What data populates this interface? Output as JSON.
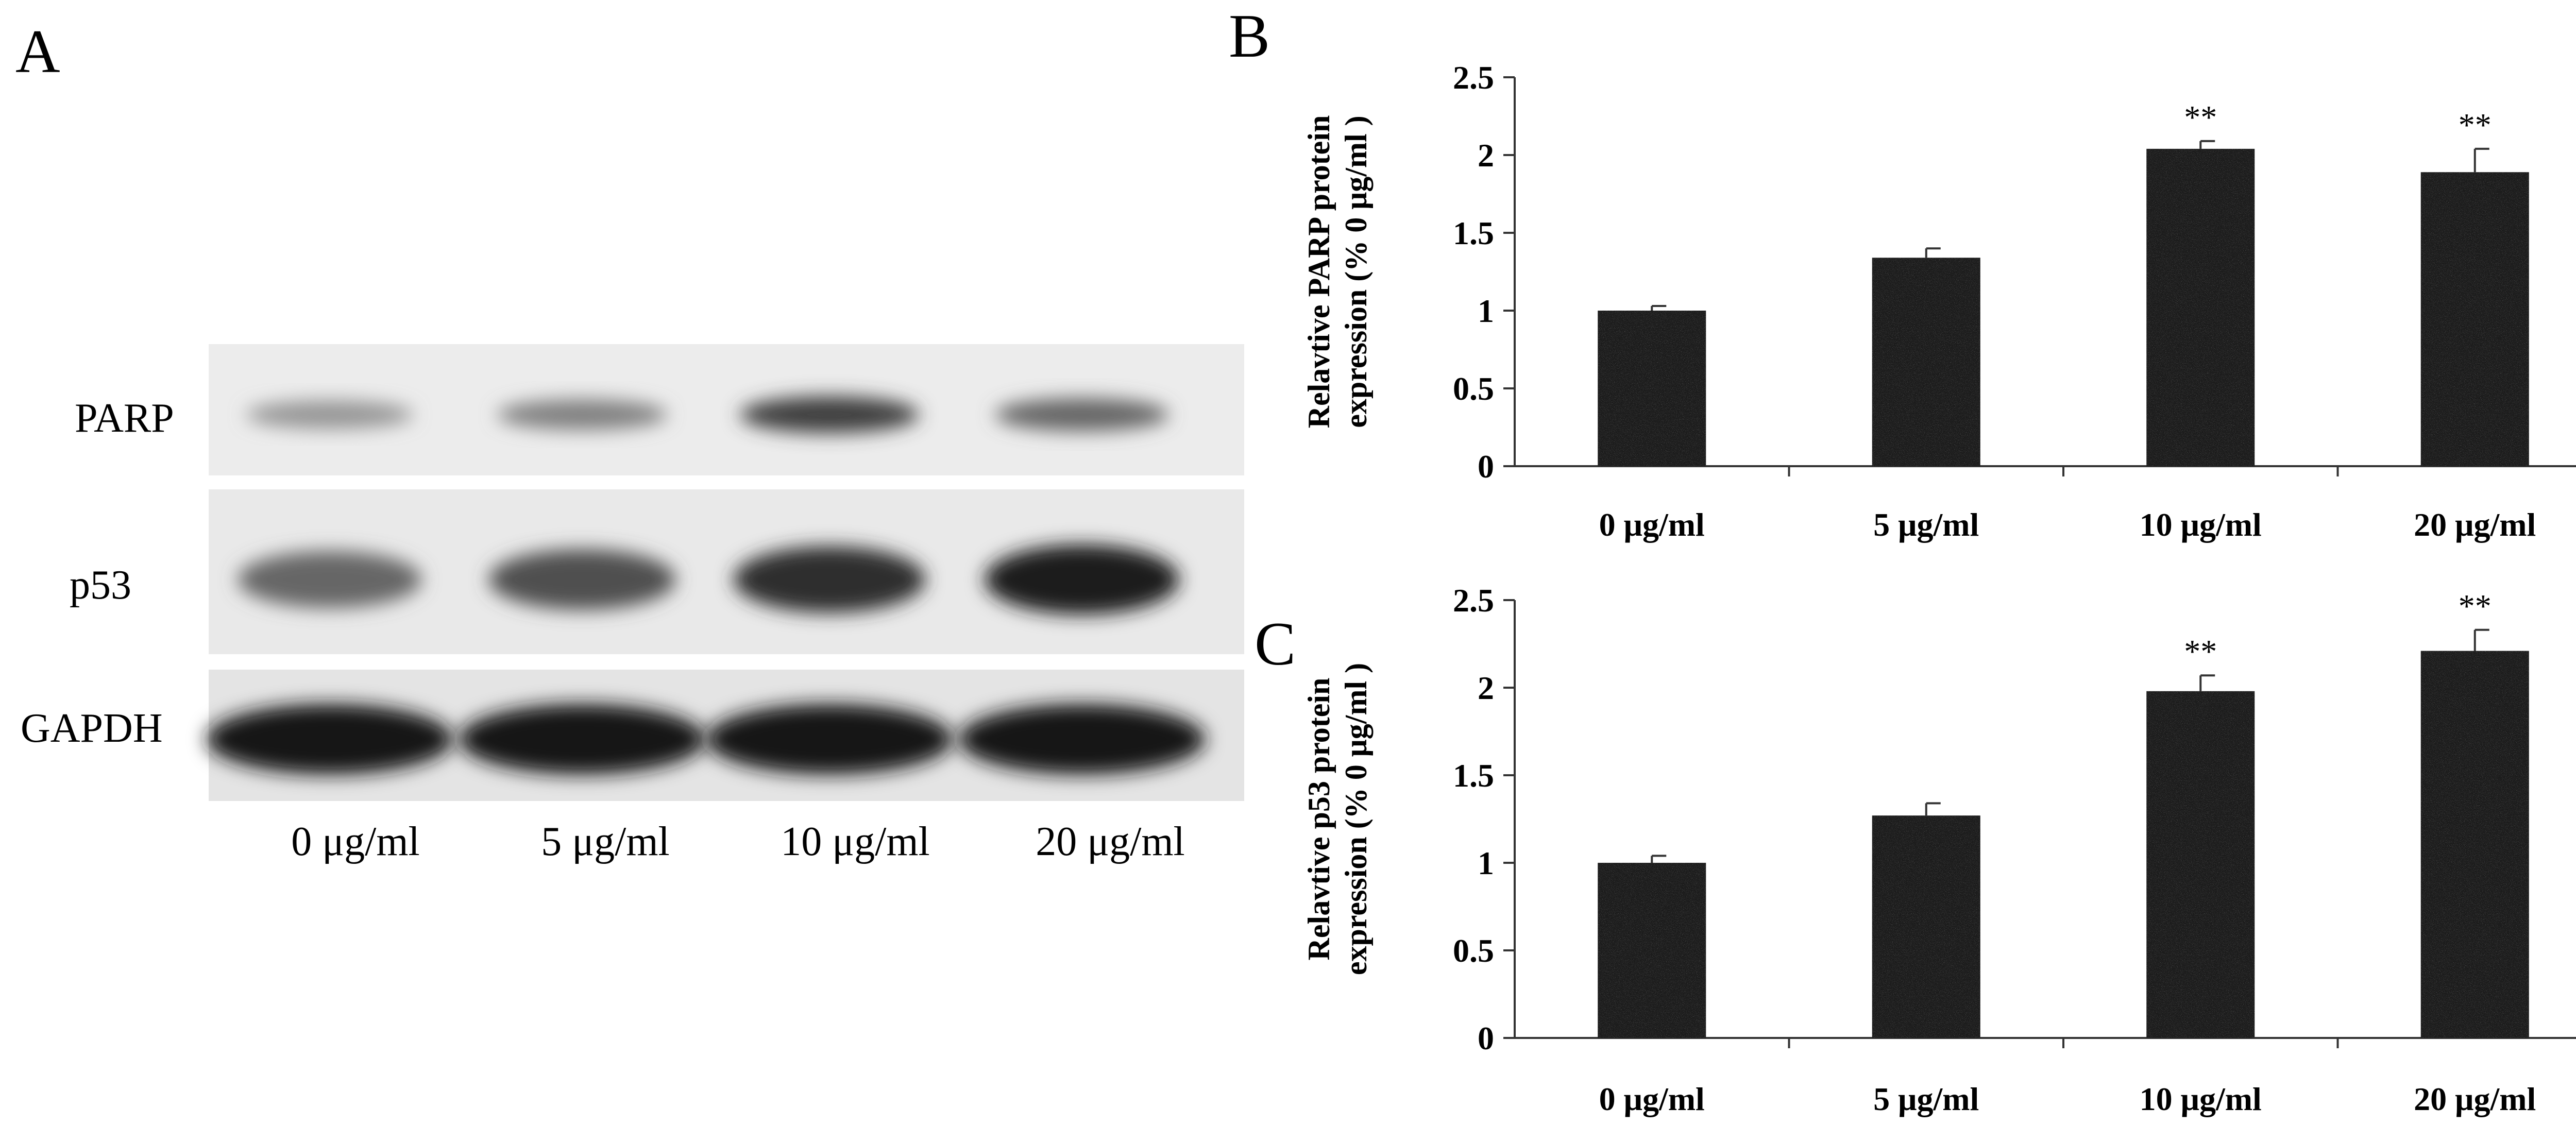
{
  "panels": {
    "a_label": "A",
    "b_label": "B",
    "c_label": "C"
  },
  "blot": {
    "rows": [
      {
        "label": "PARP",
        "intensities": [
          0.4,
          0.5,
          0.8,
          0.62
        ]
      },
      {
        "label": "p53",
        "intensities": [
          0.62,
          0.72,
          0.88,
          0.97
        ]
      },
      {
        "label": "GAPDH",
        "intensities": [
          0.98,
          0.98,
          0.98,
          0.98
        ]
      }
    ],
    "lanes": [
      "0 μg/ml",
      "5 μg/ml",
      "10 μg/ml",
      "20 μg/ml"
    ]
  },
  "chart_data": [
    {
      "type": "bar",
      "panel": "B",
      "categories": [
        "0 μg/ml",
        "5 μg/ml",
        "10 μg/ml",
        "20 μg/ml"
      ],
      "values": [
        1.0,
        1.34,
        2.04,
        1.89
      ],
      "errors": [
        0.03,
        0.06,
        0.05,
        0.15
      ],
      "annotations": [
        "",
        "",
        "**",
        "**"
      ],
      "ylabel_lines": [
        "Relavtive PARP protein",
        "expression (% 0 μg/ml )"
      ],
      "ylim": [
        0,
        2.5
      ],
      "yticks": [
        0,
        0.5,
        1,
        1.5,
        2,
        2.5
      ],
      "ytick_labels": [
        "0",
        "0.5",
        "1",
        "1.5",
        "2",
        "2.5"
      ]
    },
    {
      "type": "bar",
      "panel": "C",
      "categories": [
        "0 μg/ml",
        "5 μg/ml",
        "10 μg/ml",
        "20 μg/ml"
      ],
      "values": [
        1.0,
        1.27,
        1.98,
        2.21
      ],
      "errors": [
        0.04,
        0.07,
        0.09,
        0.12
      ],
      "annotations": [
        "",
        "",
        "**",
        "**"
      ],
      "ylabel_lines": [
        "Relavtive p53 protein",
        "expression (% 0 μg/ml )"
      ],
      "ylim": [
        0,
        2.5
      ],
      "yticks": [
        0,
        0.5,
        1,
        1.5,
        2,
        2.5
      ],
      "ytick_labels": [
        "0",
        "0.5",
        "1",
        "1.5",
        "2",
        "2.5"
      ]
    }
  ]
}
